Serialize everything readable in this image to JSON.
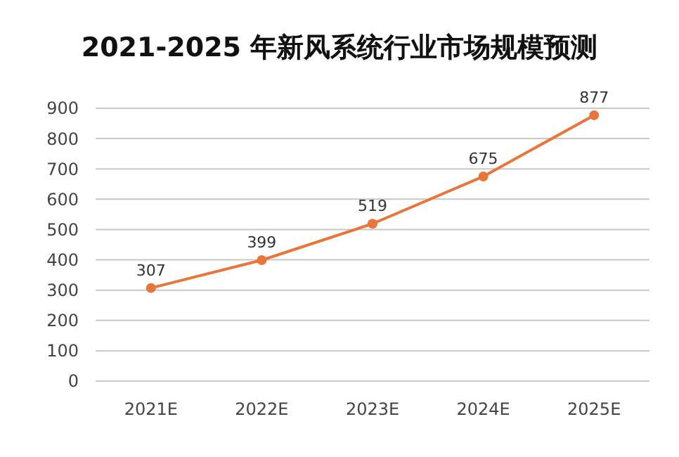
{
  "chart_data": {
    "type": "line",
    "title": "2021-2025 年新风系统行业市场规模预测",
    "categories": [
      "2021E",
      "2022E",
      "2023E",
      "2024E",
      "2025E"
    ],
    "series": [
      {
        "color": "#e8753a",
        "values": [
          307,
          399,
          519,
          675,
          877
        ]
      }
    ],
    "ylim": [
      0,
      900
    ],
    "yticks": [
      0,
      100,
      200,
      300,
      400,
      500,
      600,
      700,
      800,
      900
    ],
    "grid": "y",
    "marker": "circle",
    "line_style": "solid",
    "data_labels": true
  }
}
